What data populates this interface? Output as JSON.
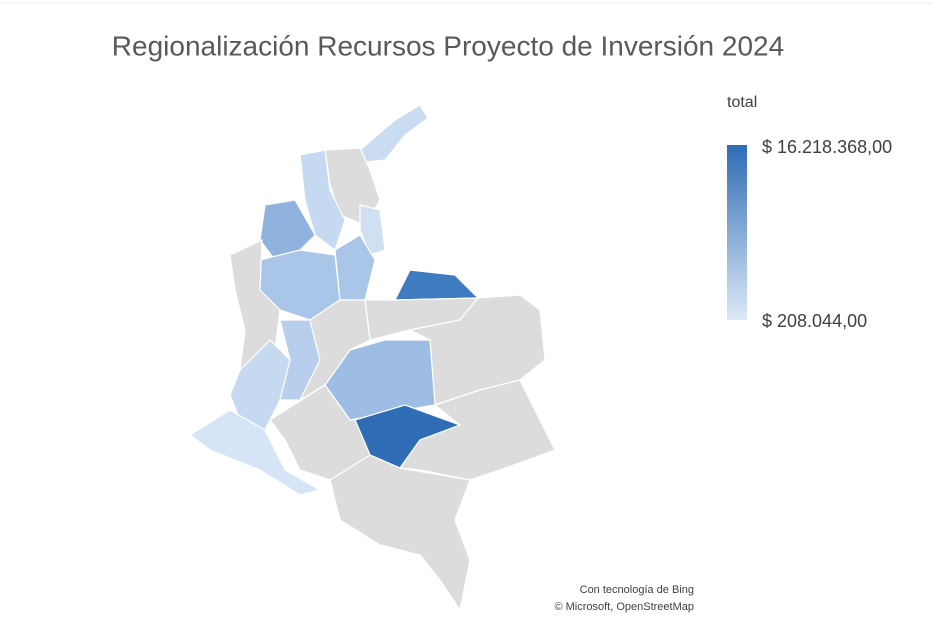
{
  "title": "Regionalización Recursos Proyecto de Inversión 2024",
  "legend": {
    "title": "total",
    "max": {
      "value": 16218368,
      "label": "$ 16.218.368,00"
    },
    "min": {
      "value": 208044,
      "label": "$ 208.044,00"
    },
    "colors": [
      "#dde9f7",
      "#2e6cb5"
    ]
  },
  "attribution": [
    "Con tecnología de Bing",
    "© Microsoft, OpenStreetMap"
  ]
}
